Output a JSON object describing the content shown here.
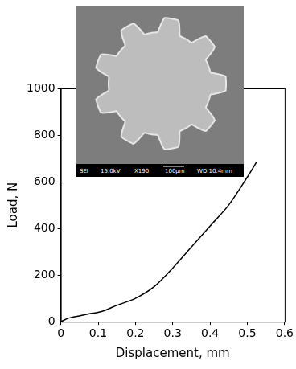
{
  "chart_data": {
    "type": "line",
    "x_label": "Displacement, mm",
    "y_label": "Load, N",
    "series": [
      {
        "name": "Load",
        "color": "#000000",
        "marker": "none",
        "line_style": "solid",
        "x": [
          0,
          0.02,
          0.05,
          0.08,
          0.1,
          0.12,
          0.15,
          0.2,
          0.25,
          0.3,
          0.35,
          0.4,
          0.45,
          0.5,
          0.525
        ],
        "values": [
          0,
          15,
          25,
          35,
          40,
          50,
          70,
          100,
          150,
          230,
          320,
          410,
          500,
          620,
          685
        ]
      }
    ],
    "xlim": [
      0,
      0.6
    ],
    "xticks": [
      0,
      0.1,
      0.2,
      0.3,
      0.4,
      0.5,
      0.6
    ],
    "ylim": [
      0,
      1000
    ],
    "yticks": [
      0,
      200,
      400,
      600,
      800,
      1000
    ],
    "grid": false,
    "inset_labels": [
      "SEI",
      "15.0kV",
      "X190",
      "100μm",
      "WD 10.4mm"
    ]
  }
}
